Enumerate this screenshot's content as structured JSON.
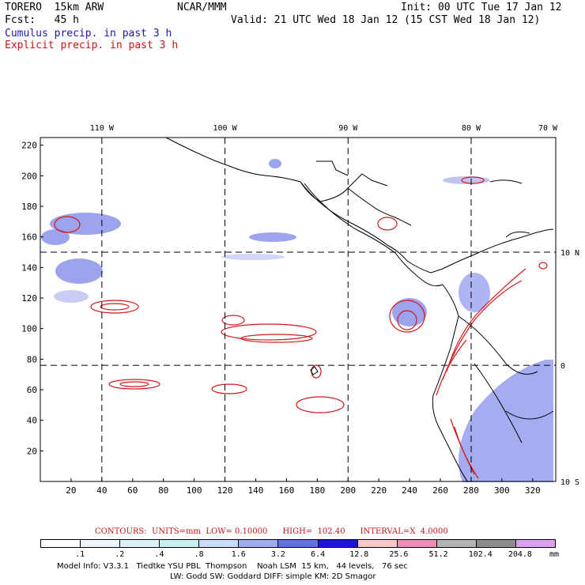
{
  "header": {
    "line1_left": "TORERO  15km ARW",
    "line1_center": "NCAR/MMM",
    "line1_right": "Init: 00 UTC Tue 17 Jan 12",
    "line2_left": "Fcst:   45 h",
    "line2_right": "Valid: 21 UTC Wed 18 Jan 12 (15 CST Wed 18 Jan 12)",
    "legend_cumulus": "Cumulus precip. in past 3 h",
    "legend_explicit": "Explicit precip. in past 3 h"
  },
  "map": {
    "top_lon_labels": [
      "110 W",
      "100 W",
      "90 W",
      "80 W",
      "70 W"
    ],
    "right_lat_labels": [
      "10 N",
      "0",
      "10 S"
    ],
    "x_ticks": [
      "20",
      "40",
      "60",
      "80",
      "100",
      "120",
      "140",
      "160",
      "180",
      "200",
      "220",
      "240",
      "260",
      "280",
      "300",
      "320"
    ],
    "y_ticks": [
      "220",
      "200",
      "180",
      "160",
      "140",
      "120",
      "100",
      "80",
      "60",
      "40",
      "20"
    ],
    "x_range": [
      0,
      335
    ],
    "y_range": [
      0,
      225
    ],
    "lon_grid_x": [
      40,
      120,
      200,
      280,
      360
    ],
    "lat_grid_y": [
      150,
      76
    ],
    "colors": {
      "coast": "#000000",
      "cumulus": "#3c4bdc",
      "explicit": "#d21919"
    }
  },
  "contour_info": {
    "label": "CONTOURS:  UNITS=mm  LOW= 0.10000      HIGH=  102.40      INTERVAL=X  4.0000"
  },
  "colorbar": {
    "labels": [
      ".1",
      ".2",
      ".4",
      ".8",
      "1.6",
      "3.2",
      "6.4",
      "12.8",
      "25.6",
      "51.2",
      "102.4",
      "204.8"
    ],
    "units": "mm",
    "colors": [
      "#ffffff",
      "#f0f4fc",
      "#dcf0f8",
      "#c8f0f0",
      "#c8dcf8",
      "#a0acf0",
      "#6470e8",
      "#1e14dc",
      "#f8c8c8",
      "#f08cb4",
      "#b4b4b4",
      "#8c8c8c",
      "#dca0f0"
    ]
  },
  "footer": {
    "line1": "Model Info: V3.3.1   Tiedtke YSU PBL  Thompson    Noah LSM  15 km,   44 levels,   76 sec",
    "line2": "LW: Godd SW: Goddard DIFF: simple KM: 2D Smagor"
  }
}
